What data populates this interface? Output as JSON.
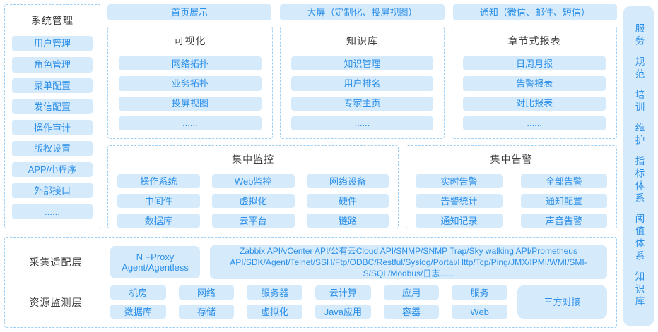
{
  "colors": {
    "accent_blue": "#2a8fe8",
    "block_fill": "#d5eafb",
    "dashed_border": "#9ccdf3",
    "title_text": "#3c3c3c"
  },
  "system_panel": {
    "title": "系统管理",
    "items": [
      "用户管理",
      "角色管理",
      "菜单配置",
      "发信配置",
      "操作审计",
      "版权设置",
      "APP/小程序",
      "外部接口",
      "......"
    ]
  },
  "top_nav": {
    "items": [
      "首页展示",
      "大屏（定制化、投屏视图）",
      "通知（微信、邮件、短信）"
    ]
  },
  "sections": [
    {
      "title": "可视化",
      "items": [
        "网络拓扑",
        "业务拓扑",
        "投屏视图",
        "......"
      ]
    },
    {
      "title": "知识库",
      "items": [
        "知识管理",
        "用户排名",
        "专家主页",
        "......"
      ]
    },
    {
      "title": "章节式报表",
      "items": [
        "日周月报",
        "告警报表",
        "对比报表",
        "......"
      ]
    }
  ],
  "monitoring": {
    "title": "集中监控",
    "items": [
      "操作系统",
      "Web监控",
      "网络设备",
      "中间件",
      "虚拟化",
      "硬件",
      "数据库",
      "云平台",
      "链路"
    ]
  },
  "alerting": {
    "title": "集中告警",
    "items": [
      "实时告警",
      "全部告警",
      "告警统计",
      "通知配置",
      "通知记录",
      "声音告警"
    ]
  },
  "right_rail": {
    "items": [
      "服务",
      "规范",
      "培训",
      "维护",
      "指标体系",
      "阈值体系",
      "知识库"
    ]
  },
  "bottom": {
    "adapter_label": "采集适配层",
    "proxy_line1": "N +Proxy",
    "proxy_line2": "Agent/Agentless",
    "protocols": "Zabbix API/vCenter API/公有云Cloud API/SNMP/SNMP Trap/Sky walking API/Prometheus API/SDK/Agent/Telnet/SSH/Ftp/ODBC/Restful/Syslog/Portal/Http/Tcp/Ping/JMX/IPMI/WMI/SMI-S/SQL/Modbus/日志......",
    "resource_label": "资源监测层",
    "resources_row1": [
      "机房",
      "网络",
      "服务器",
      "云计算",
      "应用",
      "服务"
    ],
    "resources_row2": [
      "数据库",
      "存储",
      "虚拟化",
      "Java应用",
      "容器",
      "Web"
    ],
    "third_party": "三方对接"
  }
}
